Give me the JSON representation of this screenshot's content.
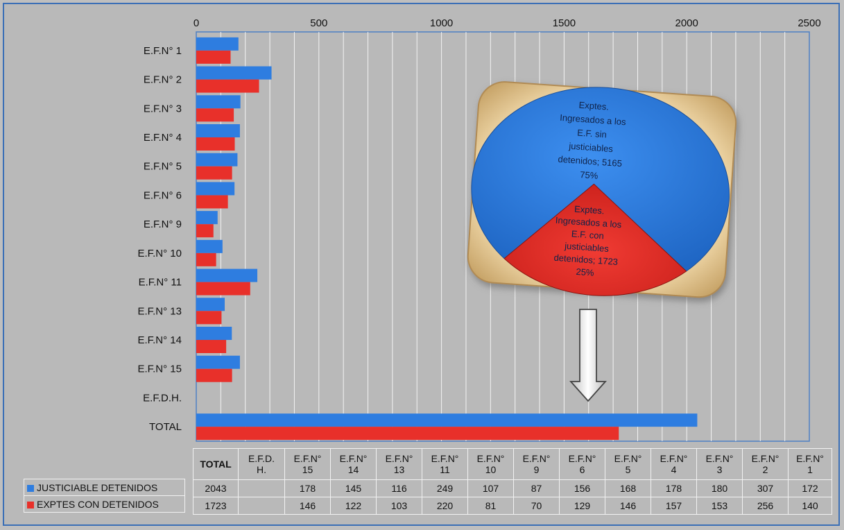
{
  "colors": {
    "series1": "#2e7de0",
    "series2": "#e8302a",
    "pie_blue": "#2d7ad8",
    "pie_red": "#e5302a",
    "frame_border": "#3b6fb6",
    "panel_bg": "#b9b9b9"
  },
  "chart_data": [
    {
      "type": "bar",
      "orientation": "horizontal",
      "categories": [
        "E.F.N° 1",
        "E.F.N° 2",
        "E.F.N° 3",
        "E.F.N° 4",
        "E.F.N° 5",
        "E.F.N° 6",
        "E.F.N° 9",
        "E.F.N° 10",
        "E.F.N° 11",
        "E.F.N° 13",
        "E.F.N° 14",
        "E.F.N° 15",
        "E.F.D.H.",
        "TOTAL"
      ],
      "series": [
        {
          "name": "JUSTICIABLE DETENIDOS",
          "values": [
            172,
            307,
            180,
            178,
            168,
            156,
            87,
            107,
            249,
            116,
            145,
            178,
            null,
            2043
          ]
        },
        {
          "name": "EXPTES CON DETENIDOS",
          "values": [
            140,
            256,
            153,
            157,
            146,
            129,
            70,
            81,
            220,
            103,
            122,
            146,
            null,
            1723
          ]
        }
      ],
      "xlim": [
        0,
        2500
      ],
      "x_ticks": [
        "0",
        "500",
        "1000",
        "1500",
        "2000",
        "2500"
      ],
      "x_tick_values": [
        0,
        500,
        1000,
        1500,
        2000,
        2500
      ],
      "grid": true,
      "legend": "bottom-left (in data table)"
    },
    {
      "type": "pie",
      "slices": [
        {
          "label_lines": [
            "Exptes.",
            "Ingresados a los",
            "E.F.  sin",
            "justiciables",
            "detenidos; 5165",
            "75%"
          ],
          "value": 5165,
          "percent": 75
        },
        {
          "label_lines": [
            "Exptes.",
            "Ingresados a los",
            "E.F. con",
            "justiciables",
            "detenidos; 1723",
            "25%"
          ],
          "value": 1723,
          "percent": 25
        }
      ]
    }
  ],
  "table": {
    "headers": [
      [
        "TOTAL"
      ],
      [
        "E.F.D.",
        "H."
      ],
      [
        "E.F.N°",
        "15"
      ],
      [
        "E.F.N°",
        "14"
      ],
      [
        "E.F.N°",
        "13"
      ],
      [
        "E.F.N°",
        "11"
      ],
      [
        "E.F.N°",
        "10"
      ],
      [
        "E.F.N°",
        "9"
      ],
      [
        "E.F.N°",
        "6"
      ],
      [
        "E.F.N°",
        "5"
      ],
      [
        "E.F.N°",
        "4"
      ],
      [
        "E.F.N°",
        "3"
      ],
      [
        "E.F.N°",
        "2"
      ],
      [
        "E.F.N°",
        "1"
      ]
    ],
    "rows": [
      {
        "label": "JUSTICIABLE DETENIDOS",
        "values": [
          "2043",
          "",
          "178",
          "145",
          "116",
          "249",
          "107",
          "87",
          "156",
          "168",
          "178",
          "180",
          "307",
          "172"
        ]
      },
      {
        "label": "EXPTES CON DETENIDOS",
        "values": [
          "1723",
          "",
          "146",
          "122",
          "103",
          "220",
          "81",
          "70",
          "129",
          "146",
          "157",
          "153",
          "256",
          "140"
        ]
      }
    ]
  }
}
